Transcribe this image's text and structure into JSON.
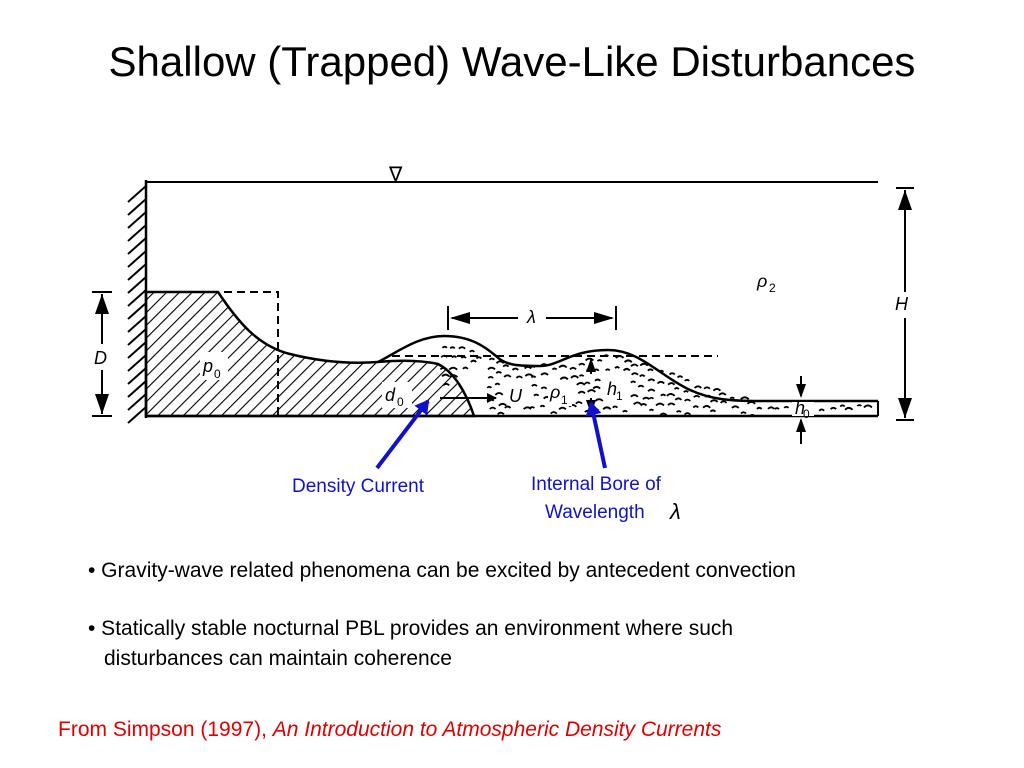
{
  "slide": {
    "title": "Shallow (Trapped) Wave-Like Disturbances"
  },
  "diagram": {
    "free_surface_symbol": "∇",
    "labels": {
      "rho2": "ρ",
      "rho2_sub": "2",
      "H": "H",
      "lambda": "λ",
      "D": "D",
      "p0": "p",
      "p0_sub": "0",
      "d0": "d",
      "d0_sub": "0",
      "U": "U",
      "rho1": "ρ",
      "rho1_sub": "1",
      "h1": "h",
      "h1_sub": "1",
      "h0": "h",
      "h0_sub": "0"
    },
    "annotations": {
      "density_current": "Density Current",
      "internal_bore_line1": "Internal Bore of",
      "internal_bore_line2": "Wavelength",
      "internal_bore_symbol": "λ"
    },
    "colors": {
      "annotation_blue": "#1111cc",
      "citation_red": "#e00000"
    }
  },
  "bullets": [
    {
      "line1": "• Gravity-wave related phenomena can be excited by antecedent convection",
      "line2": ""
    },
    {
      "line1": "• Statically stable nocturnal PBL provides an environment where such",
      "line2": "disturbances can maintain coherence"
    }
  ],
  "citation": {
    "prefix": "From Simpson (1997), ",
    "book": "An Introduction to Atmospheric Density Currents"
  }
}
